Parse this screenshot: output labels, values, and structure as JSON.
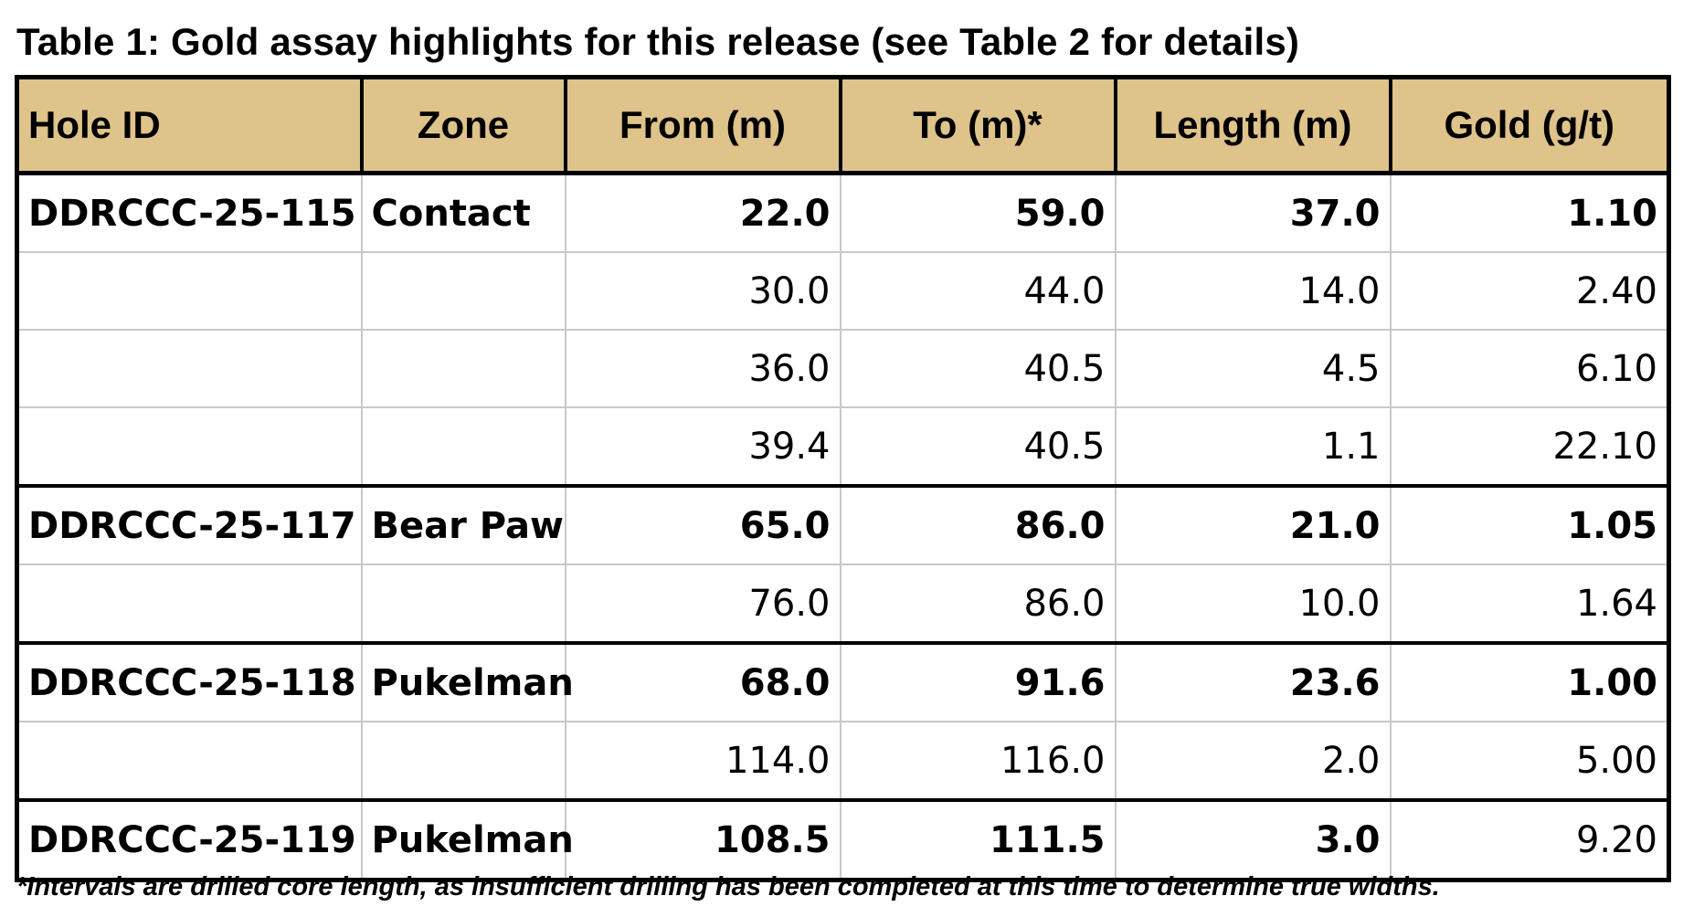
{
  "title": "Table 1: Gold assay highlights for this release (see Table 2 for details)",
  "table": {
    "headers": [
      "Hole ID",
      "Zone",
      "From (m)",
      "To (m)*",
      "Length (m)",
      "Gold (g/t)"
    ],
    "rows": [
      {
        "hole_id": "DDRCCC-25-115",
        "zone": "Contact",
        "from": "22.0",
        "to": "59.0",
        "length": "37.0",
        "gold": "1.10"
      },
      {
        "hole_id": "",
        "zone": "",
        "from": "30.0",
        "to": "44.0",
        "length": "14.0",
        "gold": "2.40"
      },
      {
        "hole_id": "",
        "zone": "",
        "from": "36.0",
        "to": "40.5",
        "length": "4.5",
        "gold": "6.10"
      },
      {
        "hole_id": "",
        "zone": "",
        "from": "39.4",
        "to": "40.5",
        "length": "1.1",
        "gold": "22.10"
      },
      {
        "hole_id": "DDRCCC-25-117",
        "zone": "Bear Paw",
        "from": "65.0",
        "to": "86.0",
        "length": "21.0",
        "gold": "1.05"
      },
      {
        "hole_id": "",
        "zone": "",
        "from": "76.0",
        "to": "86.0",
        "length": "10.0",
        "gold": "1.64"
      },
      {
        "hole_id": "DDRCCC-25-118",
        "zone": "Pukelman",
        "from": "68.0",
        "to": "91.6",
        "length": "23.6",
        "gold": "1.00"
      },
      {
        "hole_id": "",
        "zone": "",
        "from": "114.0",
        "to": "116.0",
        "length": "2.0",
        "gold": "5.00"
      },
      {
        "hole_id": "DDRCCC-25-119",
        "zone": "Pukelman",
        "from": "108.5",
        "to": "111.5",
        "length": "3.0",
        "gold": "9.20"
      }
    ]
  },
  "footnote": "*Intervals are drilled core length, as insufficient drilling has been completed at this time to determine true widths.",
  "colors": {
    "header_background": "#dec38a",
    "grid_line": "#c8c8c8",
    "border": "#000000"
  }
}
